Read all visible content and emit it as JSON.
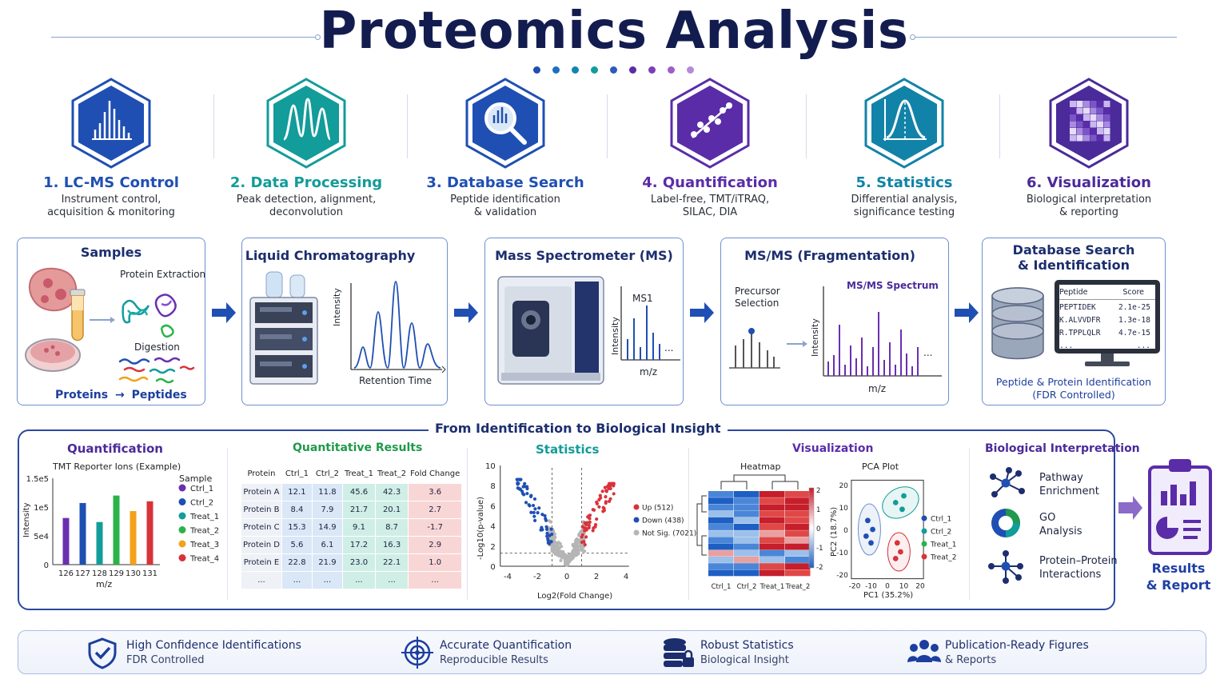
{
  "title": "Proteomics Analysis",
  "colors": {
    "navy": "#131c4f",
    "blue": "#1f4fb3",
    "teal": "#129c9a",
    "purple": "#5a2ca8",
    "red": "#d8333a",
    "green": "#1f9a4a",
    "orange": "#f2a21b"
  },
  "steps": [
    {
      "title": "1. LC-MS Control",
      "desc1": "Instrument control,",
      "desc2": "acquisition & monitoring",
      "color": "#1f4fb3",
      "icon": "bar-spectrum-icon"
    },
    {
      "title": "2. Data Processing",
      "desc1": "Peak detection, alignment,",
      "desc2": "deconvolution",
      "color": "#129c9a",
      "icon": "peaks-icon"
    },
    {
      "title": "3. Database Search",
      "desc1": "Peptide identification",
      "desc2": "& validation",
      "color": "#1f4fb3",
      "icon": "magnifier-icon"
    },
    {
      "title": "4. Quantification",
      "desc1": "Label-free, TMT/iTRAQ,",
      "desc2": "SILAC, DIA",
      "color": "#5a2ca8",
      "icon": "scatter-icon"
    },
    {
      "title": "5. Statistics",
      "desc1": "Differential analysis,",
      "desc2": "significance testing",
      "color": "#1283a8",
      "icon": "bell-curve-icon"
    },
    {
      "title": "6. Visualization",
      "desc1": "Biological interpretation",
      "desc2": "& reporting",
      "color": "#4b2a9a",
      "icon": "heatmap-icon"
    }
  ],
  "panels": {
    "samples": {
      "title": "Samples",
      "extraction": "Protein Extraction",
      "digestion": "Digestion",
      "proteins": "Proteins",
      "arrow": "→",
      "peptides": "Peptides"
    },
    "lc": {
      "title": "Liquid Chromatography",
      "ylabel": "Intensity",
      "xlabel": "Retention Time"
    },
    "ms": {
      "title": "Mass Spectrometer (MS)",
      "ms1": "MS1",
      "ylabel": "Intensity",
      "xlabel": "m/z",
      "ellipsis": "..."
    },
    "msms": {
      "title": "MS/MS (Fragmentation)",
      "precursor1": "Precursor",
      "precursor2": "Selection",
      "spectrum": "MS/MS Spectrum",
      "ylabel": "Intensity",
      "xlabel": "m/z",
      "ellipsis": "..."
    },
    "db": {
      "title1": "Database Search",
      "title2": "& Identification",
      "col1": "Peptide",
      "col2": "Score",
      "rows": [
        [
          "PEPTIDEK",
          "2.1e-25"
        ],
        [
          "K.ALVVDFR",
          "1.3e-18"
        ],
        [
          "R.TPPLQLR",
          "4.7e-15"
        ],
        [
          "...",
          "..."
        ]
      ],
      "foot1": "Peptide & Protein Identification",
      "foot2": "(FDR Controlled)"
    }
  },
  "insight_title": "From Identification to Biological Insight",
  "quant": {
    "title": "Quantification",
    "chart_title": "TMT Reporter Ions (Example)",
    "legend_title": "Sample",
    "ylabel": "Intensity",
    "xlabel": "m/z"
  },
  "chart_data": {
    "type": "bar",
    "title": "TMT Reporter Ions (Example)",
    "xlabel": "m/z",
    "ylabel": "Intensity",
    "categories": [
      "126",
      "127",
      "128",
      "129",
      "130",
      "131"
    ],
    "values": [
      81000,
      107000,
      74000,
      120000,
      93000,
      110000
    ],
    "yticks": [
      "0",
      "5e4",
      "1e5",
      "1.5e5"
    ],
    "ylim": [
      0,
      150000
    ],
    "series_names": [
      "Ctrl_1",
      "Ctrl_2",
      "Treat_1",
      "Treat_2",
      "Treat_3",
      "Treat_4"
    ],
    "series_colors": [
      "#6a2fb0",
      "#1f4fb3",
      "#129c9a",
      "#2bb34a",
      "#f2a21b",
      "#d8333a"
    ],
    "legend": "right"
  },
  "results": {
    "title": "Quantitative Results",
    "headers": [
      "Protein",
      "Ctrl_1",
      "Ctrl_2",
      "Treat_1",
      "Treat_2",
      "Fold Change"
    ],
    "rows": [
      [
        "Protein A",
        "12.1",
        "11.8",
        "45.6",
        "42.3",
        "3.6"
      ],
      [
        "Protein B",
        "8.4",
        "7.9",
        "21.7",
        "20.1",
        "2.7"
      ],
      [
        "Protein C",
        "15.3",
        "14.9",
        "9.1",
        "8.7",
        "-1.7"
      ],
      [
        "Protein D",
        "5.6",
        "6.1",
        "17.2",
        "16.3",
        "2.9"
      ],
      [
        "Protein E",
        "22.8",
        "21.9",
        "23.0",
        "22.1",
        "1.0"
      ],
      [
        "...",
        "...",
        "...",
        "...",
        "...",
        "..."
      ]
    ]
  },
  "volcano": {
    "title": "Statistics",
    "ylabel": "-Log10(p-value)",
    "xlabel": "Log2(Fold Change)",
    "yticks": [
      "0",
      "2",
      "4",
      "6",
      "8",
      "10"
    ],
    "xticks": [
      "-4",
      "-2",
      "0",
      "2",
      "4"
    ],
    "legend": [
      {
        "label": "Up (512)",
        "color": "#d8333a"
      },
      {
        "label": "Down (438)",
        "color": "#1f4fb3"
      },
      {
        "label": "Not Sig. (7021)",
        "color": "#b5b5b5"
      }
    ]
  },
  "viz": {
    "title": "Visualization",
    "heatmap_title": "Heatmap",
    "heat_cols": [
      "Ctrl_1",
      "Ctrl_2",
      "Treat_1",
      "Treat_2"
    ],
    "scale": [
      "2",
      "1",
      "0",
      "-1",
      "-2"
    ],
    "pca_title": "PCA Plot",
    "pca_ylabel": "PC2 (18.7%)",
    "pca_xlabel": "PC1 (35.2%)",
    "pca_yticks": [
      "20",
      "10",
      "0",
      "-10",
      "-20"
    ],
    "pca_xticks": [
      "-20",
      "-10",
      "0",
      "10",
      "20"
    ],
    "pca_legend": [
      {
        "label": "Ctrl_1",
        "color": "#1f4fb3"
      },
      {
        "label": "Ctrl_2",
        "color": "#129c9a"
      },
      {
        "label": "Treat_1",
        "color": "#2bb34a"
      },
      {
        "label": "Treat_2",
        "color": "#d8333a"
      }
    ]
  },
  "bio": {
    "title": "Biological Interpretation",
    "items": [
      {
        "l1": "Pathway",
        "l2": "Enrichment",
        "icon": "network-icon"
      },
      {
        "l1": "GO",
        "l2": "Analysis",
        "icon": "donut-icon"
      },
      {
        "l1": "Protein–Protein",
        "l2": "Interactions",
        "icon": "interaction-icon"
      }
    ]
  },
  "results_report": {
    "l1": "Results",
    "l2": "& Report"
  },
  "footer": [
    {
      "title": "High Confidence Identifications",
      "sub": "FDR Controlled",
      "icon": "shield-check-icon"
    },
    {
      "title": "Accurate Quantification",
      "sub": "Reproducible Results",
      "icon": "target-icon"
    },
    {
      "title": "Robust Statistics",
      "sub": "Biological Insight",
      "icon": "database-lock-icon"
    },
    {
      "title": "Publication-Ready Figures",
      "sub": "& Reports",
      "icon": "people-icon"
    }
  ]
}
